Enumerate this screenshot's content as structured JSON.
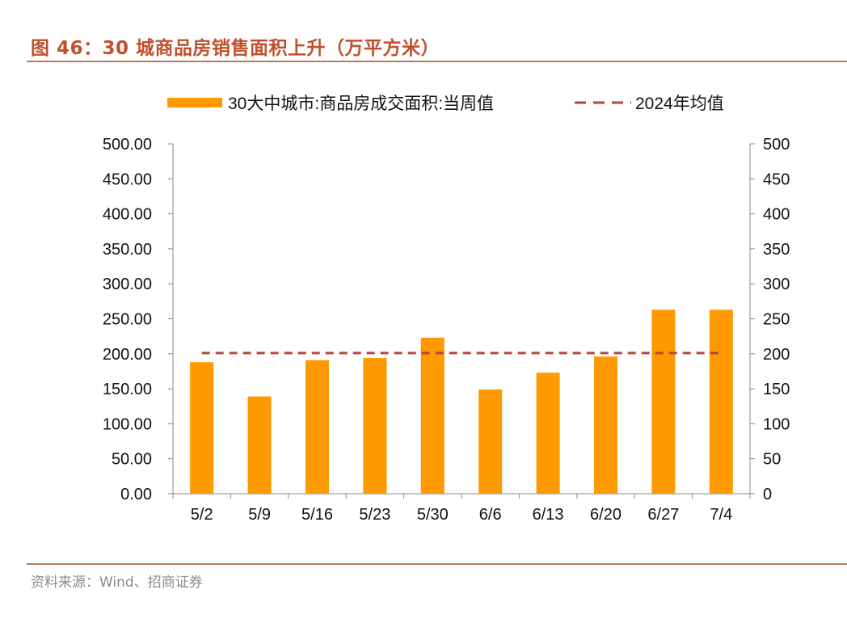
{
  "figure": {
    "title": "图 46：30 城商品房销售面积上升（万平方米）",
    "source": "资料来源：Wind、招商证券"
  },
  "colors": {
    "bar": "#FF9900",
    "avg_line": "#B3473E",
    "title": "#C0502D",
    "rule": "#B87A5E"
  },
  "chart_data": {
    "type": "bar",
    "categories": [
      "5/2",
      "5/9",
      "5/16",
      "5/23",
      "5/30",
      "6/6",
      "6/13",
      "6/20",
      "6/27",
      "7/4"
    ],
    "series": [
      {
        "name": "30大中城市:商品房成交面积:当周值",
        "type": "bar",
        "axis": "left",
        "values": [
          188,
          139,
          191,
          194,
          223,
          149,
          173,
          196,
          263,
          263
        ]
      },
      {
        "name": "2024年均值",
        "type": "line",
        "style": "dashed",
        "axis": "right",
        "values": [
          201,
          201,
          201,
          201,
          201,
          201,
          201,
          201,
          201,
          201
        ]
      }
    ],
    "ylim": [
      0,
      500
    ],
    "y_ticks_left": [
      "0.00",
      "50.00",
      "100.00",
      "150.00",
      "200.00",
      "250.00",
      "300.00",
      "350.00",
      "400.00",
      "450.00",
      "500.00"
    ],
    "y_ticks_right": [
      "0",
      "50",
      "100",
      "150",
      "200",
      "250",
      "300",
      "350",
      "400",
      "450",
      "500"
    ],
    "grid": false,
    "legend_position": "top"
  }
}
